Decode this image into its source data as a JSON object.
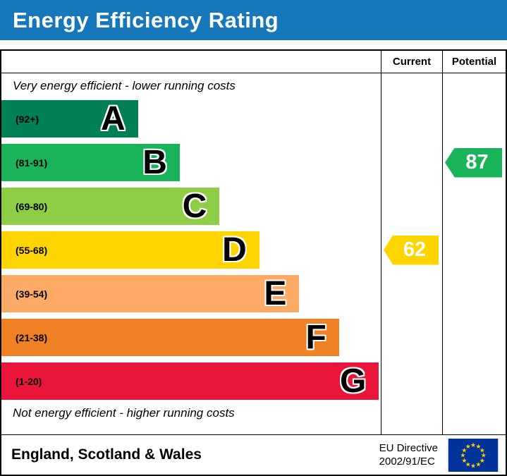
{
  "header": {
    "title": "Energy Efficiency Rating",
    "bg_color": "#1777bb"
  },
  "columns": {
    "current_label": "Current",
    "potential_label": "Potential"
  },
  "chart_data": {
    "type": "bar",
    "title": "Energy Efficiency Rating",
    "top_note": "Very energy efficient - lower running costs",
    "bottom_note": "Not energy efficient - higher running costs",
    "bands": [
      {
        "letter": "A",
        "range": "(92+)",
        "color": "#008054",
        "width_pct": 36
      },
      {
        "letter": "B",
        "range": "(81-91)",
        "color": "#19b459",
        "width_pct": 47
      },
      {
        "letter": "C",
        "range": "(69-80)",
        "color": "#8dce46",
        "width_pct": 57.5
      },
      {
        "letter": "D",
        "range": "(55-68)",
        "color": "#ffd500",
        "width_pct": 68
      },
      {
        "letter": "E",
        "range": "(39-54)",
        "color": "#fcaa65",
        "width_pct": 78.5
      },
      {
        "letter": "F",
        "range": "(21-38)",
        "color": "#ef8023",
        "width_pct": 89
      },
      {
        "letter": "G",
        "range": "(1-20)",
        "color": "#e9153b",
        "width_pct": 99.5
      }
    ],
    "current": {
      "value": 62,
      "band_letter": "D",
      "band_index": 3,
      "color": "#ffd500"
    },
    "potential": {
      "value": 87,
      "band_letter": "B",
      "band_index": 1,
      "color": "#19b459"
    }
  },
  "footer": {
    "region": "England, Scotland & Wales",
    "directive_line1": "EU Directive",
    "directive_line2": "2002/91/EC",
    "flag": {
      "name": "eu-flag",
      "bg": "#003399",
      "star_color": "#ffcc00"
    }
  }
}
